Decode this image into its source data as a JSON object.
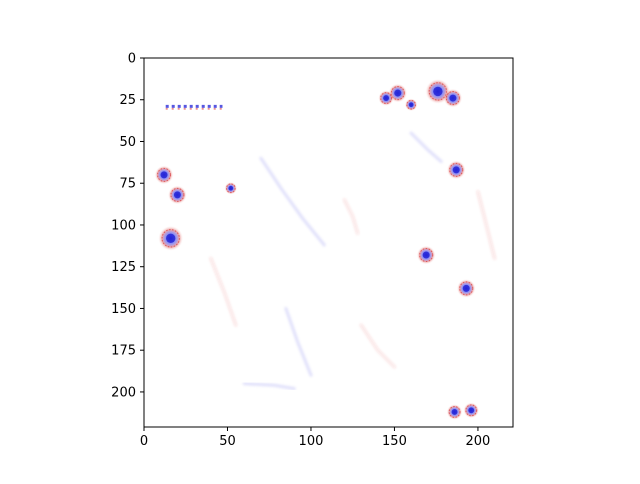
{
  "chart_data": {
    "type": "heatmap",
    "title": "",
    "xlabel": "",
    "ylabel": "",
    "xlim": [
      0,
      221
    ],
    "ylim": [
      221,
      0
    ],
    "xticks": [
      0,
      50,
      100,
      150,
      200
    ],
    "yticks": [
      0,
      25,
      50,
      75,
      100,
      125,
      150,
      175,
      200
    ],
    "xtick_labels": [
      "0",
      "50",
      "100",
      "150",
      "200"
    ],
    "ytick_labels": [
      "0",
      "25",
      "50",
      "75",
      "100",
      "125",
      "150",
      "175",
      "200"
    ],
    "colormap": "bwr",
    "colors": {
      "positive": "#d62728",
      "negative": "#1f1fd6",
      "zero": "#ffffff"
    },
    "grid": false,
    "features": [
      {
        "x": 16,
        "y": 108,
        "r": 4,
        "kind": "blob"
      },
      {
        "x": 20,
        "y": 82,
        "r": 3,
        "kind": "blob"
      },
      {
        "x": 12,
        "y": 70,
        "r": 3,
        "kind": "blob"
      },
      {
        "x": 169,
        "y": 118,
        "r": 3,
        "kind": "blob"
      },
      {
        "x": 193,
        "y": 138,
        "r": 3,
        "kind": "blob"
      },
      {
        "x": 196,
        "y": 211,
        "r": 2.5,
        "kind": "blob"
      },
      {
        "x": 186,
        "y": 212,
        "r": 2.5,
        "kind": "blob"
      },
      {
        "x": 152,
        "y": 21,
        "r": 3,
        "kind": "blob"
      },
      {
        "x": 176,
        "y": 20,
        "r": 4,
        "kind": "blob"
      },
      {
        "x": 185,
        "y": 24,
        "r": 3,
        "kind": "blob"
      },
      {
        "x": 145,
        "y": 24,
        "r": 2.5,
        "kind": "blob"
      },
      {
        "x": 160,
        "y": 28,
        "r": 2,
        "kind": "blob"
      },
      {
        "x": 187,
        "y": 67,
        "r": 3,
        "kind": "blob"
      },
      {
        "x": 52,
        "y": 78,
        "r": 2,
        "kind": "blob"
      },
      {
        "x": 30,
        "y": 29,
        "r": 2,
        "kind": "dash_row",
        "x2": 47
      }
    ],
    "streaks": [
      [
        [
          70,
          60
        ],
        [
          82,
          78
        ],
        [
          95,
          96
        ],
        [
          108,
          112
        ]
      ],
      [
        [
          120,
          85
        ],
        [
          125,
          95
        ],
        [
          128,
          105
        ]
      ],
      [
        [
          160,
          45
        ],
        [
          170,
          55
        ],
        [
          178,
          62
        ]
      ],
      [
        [
          40,
          120
        ],
        [
          48,
          140
        ],
        [
          55,
          160
        ]
      ],
      [
        [
          85,
          150
        ],
        [
          92,
          170
        ],
        [
          100,
          190
        ]
      ],
      [
        [
          130,
          160
        ],
        [
          140,
          175
        ],
        [
          150,
          185
        ]
      ],
      [
        [
          60,
          195
        ],
        [
          78,
          196
        ],
        [
          90,
          198
        ]
      ],
      [
        [
          200,
          80
        ],
        [
          205,
          100
        ],
        [
          210,
          120
        ]
      ]
    ]
  }
}
